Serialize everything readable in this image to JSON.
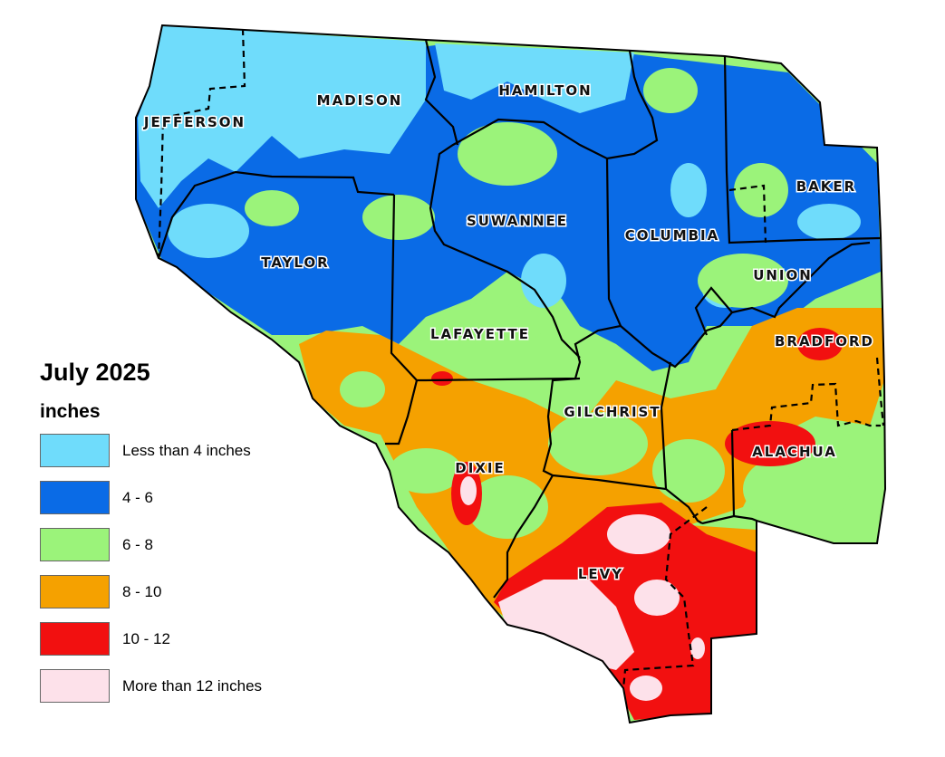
{
  "map": {
    "counties": [
      {
        "id": "madison",
        "name": "MADISON"
      },
      {
        "id": "hamilton",
        "name": "HAMILTON"
      },
      {
        "id": "jefferson",
        "name": "JEFFERSON"
      },
      {
        "id": "suwannee",
        "name": "SUWANNEE"
      },
      {
        "id": "columbia",
        "name": "COLUMBIA"
      },
      {
        "id": "baker",
        "name": "BAKER"
      },
      {
        "id": "taylor",
        "name": "TAYLOR"
      },
      {
        "id": "union",
        "name": "UNION"
      },
      {
        "id": "lafayette",
        "name": "LAFAYETTE"
      },
      {
        "id": "bradford",
        "name": "BRADFORD"
      },
      {
        "id": "gilchrist",
        "name": "GILCHRIST"
      },
      {
        "id": "alachua",
        "name": "ALACHUA"
      },
      {
        "id": "dixie",
        "name": "DIXIE"
      },
      {
        "id": "levy",
        "name": "LEVY"
      }
    ]
  },
  "legend": {
    "title": "July 2025",
    "unit": "inches",
    "items": [
      {
        "label": "Less than 4 inches",
        "color": "#6fdcfb"
      },
      {
        "label": "4 - 6",
        "color": "#0a6be6"
      },
      {
        "label": "6 - 8",
        "color": "#9bf37a"
      },
      {
        "label": "8 - 10",
        "color": "#f5a100"
      },
      {
        "label": "10 - 12",
        "color": "#f21010"
      },
      {
        "label": "More than 12 inches",
        "color": "#fde1ea"
      }
    ]
  }
}
